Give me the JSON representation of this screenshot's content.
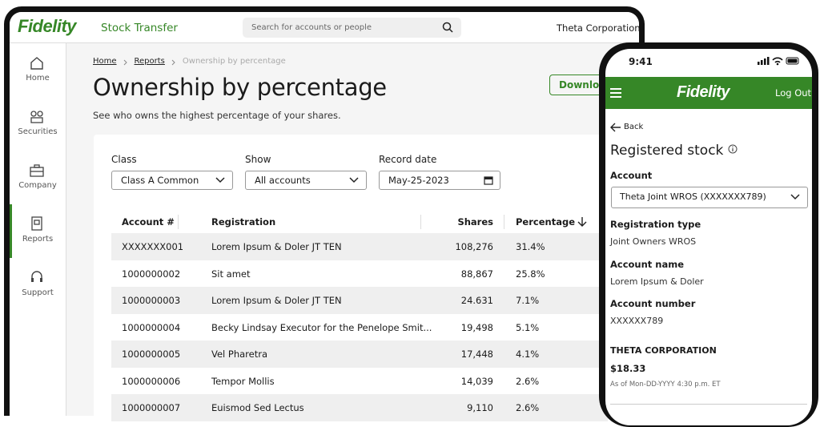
{
  "desktop": {
    "brand": "Fidelity",
    "app_title": "Stock Transfer",
    "search_placeholder": "Search for accounts or people",
    "org": "Theta Corporation",
    "nav": [
      "Home",
      "Securities",
      "Company",
      "Reports",
      "Support"
    ],
    "breadcrumb": [
      "Home",
      "Reports",
      "Ownership by percentage"
    ],
    "title": "Ownership by percentage",
    "subtitle": "See who owns the highest percentage of your shares.",
    "download": "Download",
    "filters": [
      {
        "label": "Class",
        "value": "Class A Common"
      },
      {
        "label": "Show",
        "value": "All accounts"
      },
      {
        "label": "Record date",
        "value": "May-25-2023"
      }
    ],
    "table": {
      "columns": [
        "Account #",
        "Registration",
        "Shares",
        "Percentage"
      ],
      "rows": [
        [
          "XXXXXXX001",
          "Lorem Ipsum & Doler JT TEN",
          "108,276",
          "31.4%"
        ],
        [
          "1000000002",
          "Sit amet",
          "88,867",
          "25.8%"
        ],
        [
          "1000000003",
          "Lorem Ipsum & Doler JT TEN",
          "24.631",
          "7.1%"
        ],
        [
          "1000000004",
          "Becky Lindsay Executor for the Penelope Smit...",
          "19,498",
          "5.1%"
        ],
        [
          "1000000005",
          "Vel Pharetra",
          "17,448",
          "4.1%"
        ],
        [
          "1000000006",
          "Tempor Mollis",
          "14,039",
          "2.6%"
        ],
        [
          "1000000007",
          "Euismod Sed Lectus",
          "9,110",
          "2.6%"
        ]
      ]
    }
  },
  "mobile": {
    "time": "9:41",
    "brand": "Fidelity",
    "logout": "Log Out",
    "back": "Back",
    "title": "Registered stock",
    "account_label": "Account",
    "account_value": "Theta Joint WROS (XXXXXXX789)",
    "fields": [
      {
        "label": "Registration type",
        "value": "Joint Owners WROS"
      },
      {
        "label": "Account name",
        "value": "Lorem Ipsum & Doler"
      },
      {
        "label": "Account number",
        "value": "XXXXXX789"
      }
    ],
    "company": "THETA CORPORATION",
    "price": "$18.33",
    "as_of": "As of Mon-DD-YYYY 4:30 p.m. ET"
  }
}
